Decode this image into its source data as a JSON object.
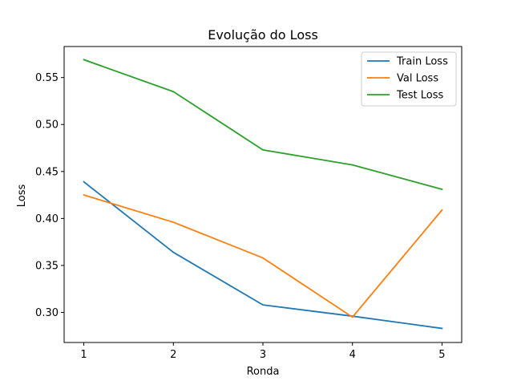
{
  "chart_data": {
    "type": "line",
    "title": "Evolução do Loss",
    "xlabel": "Ronda",
    "ylabel": "Loss",
    "x": [
      1,
      2,
      3,
      4,
      5
    ],
    "xticks": [
      "1",
      "2",
      "3",
      "4",
      "5"
    ],
    "yticks": [
      "0.30",
      "0.35",
      "0.40",
      "0.45",
      "0.50",
      "0.55"
    ],
    "xlim": [
      0.78,
      5.22
    ],
    "ylim": [
      0.268,
      0.583
    ],
    "legend_position": "top-right",
    "grid": false,
    "series": [
      {
        "name": "Train Loss",
        "color": "#1f77b4",
        "values": [
          0.439,
          0.364,
          0.308,
          0.296,
          0.283
        ]
      },
      {
        "name": "Val Loss",
        "color": "#ff7f0e",
        "values": [
          0.425,
          0.396,
          0.358,
          0.295,
          0.409
        ]
      },
      {
        "name": "Test Loss",
        "color": "#2ca02c",
        "values": [
          0.569,
          0.535,
          0.473,
          0.457,
          0.431
        ]
      }
    ]
  }
}
